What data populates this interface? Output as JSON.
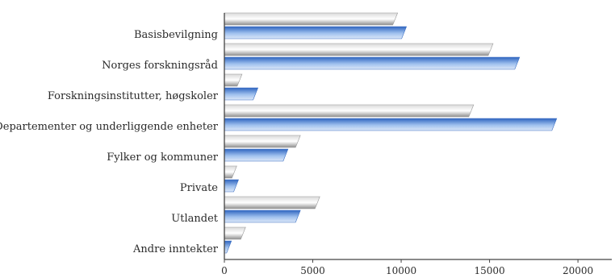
{
  "chart_data": {
    "type": "bar",
    "orientation": "horizontal",
    "categories": [
      "Basisbevilgning",
      "Norges forskningsråd",
      "Forskningsinstitutter, høgskoler",
      "Departementer og underliggende enheter",
      "Fylker og kommuner",
      "Private",
      "Utlandet",
      "Andre inntekter"
    ],
    "series": [
      {
        "values": [
          9800,
          15200,
          1000,
          14100,
          4300,
          700,
          5400,
          1200
        ],
        "color": "#9a9a9a"
      },
      {
        "values": [
          10300,
          16700,
          1900,
          18800,
          3600,
          800,
          4300,
          400
        ],
        "color": "#3a6fc4"
      }
    ],
    "x_ticks": [
      "0",
      "5000",
      "10000",
      "15000",
      "20000"
    ],
    "xlim": [
      0,
      21000
    ],
    "title": "",
    "xlabel": "",
    "ylabel": "",
    "grid": false,
    "legend": "none"
  }
}
